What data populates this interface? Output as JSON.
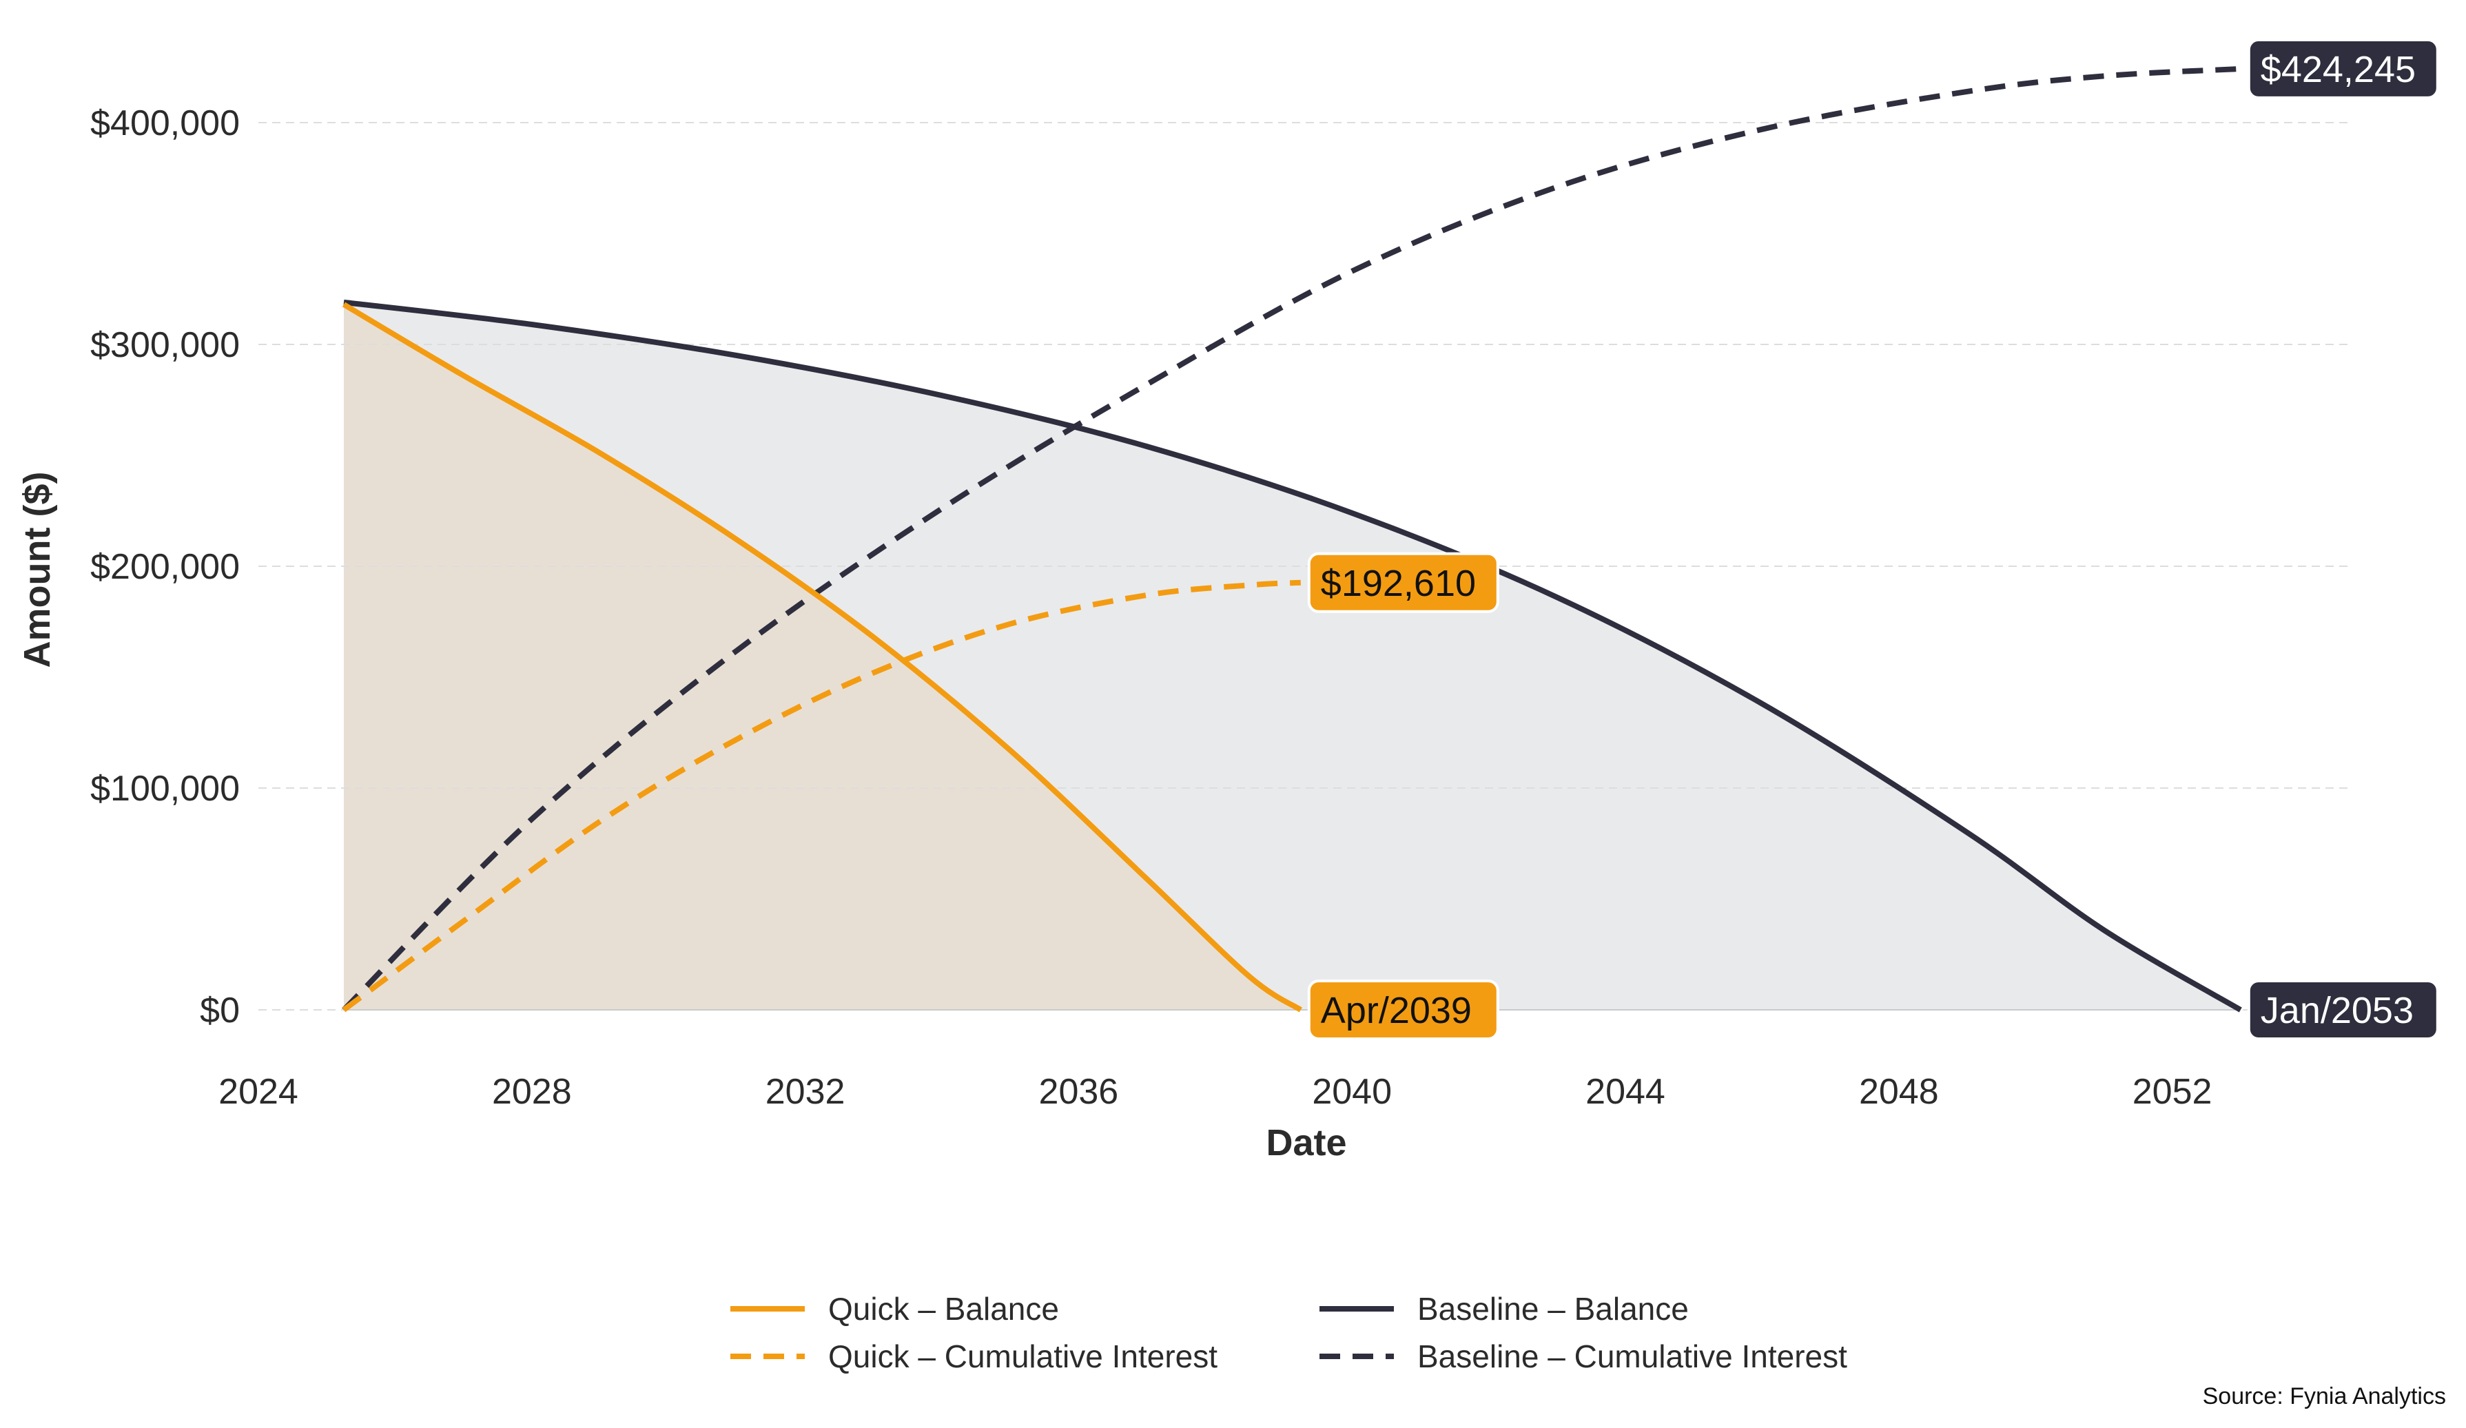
{
  "chart_data": {
    "type": "line",
    "title": "",
    "xlabel": "Date",
    "ylabel": "Amount ($)",
    "xlim": [
      2024,
      2055
    ],
    "ylim": [
      -20000,
      440000
    ],
    "x_ticks": [
      2024,
      2028,
      2032,
      2036,
      2040,
      2044,
      2048,
      2052
    ],
    "x_tick_labels": [
      "2024",
      "2028",
      "2032",
      "2036",
      "2040",
      "2044",
      "2048",
      "2052"
    ],
    "y_ticks": [
      0,
      100000,
      200000,
      300000,
      400000
    ],
    "y_tick_labels": [
      "$0",
      "$100,000",
      "$200,000",
      "$300,000",
      "$400,000"
    ],
    "grid": "horizontal dashed",
    "colors": {
      "quick": "#F39C12",
      "baseline": "#2E2E3E",
      "quick_fill": "#E8DFD4",
      "baseline_fill": "#E9EAEC",
      "grid": "#DDDDDD"
    },
    "series": [
      {
        "name": "Quick – Balance",
        "style": "solid",
        "color": "#F39C12",
        "fill": true,
        "x": [
          2025.25,
          2027,
          2029,
          2031,
          2033,
          2035,
          2037,
          2038.5,
          2039.25
        ],
        "values": [
          318000,
          286000,
          251000,
          212000,
          168000,
          117000,
          59000,
          15000,
          0
        ]
      },
      {
        "name": "Quick – Cumulative Interest",
        "style": "dashed",
        "color": "#F39C12",
        "x": [
          2025.25,
          2027,
          2029,
          2031,
          2033,
          2035,
          2037,
          2038.5,
          2039.25
        ],
        "values": [
          0,
          40000,
          85000,
          122000,
          152000,
          174000,
          187000,
          191500,
          192610
        ]
      },
      {
        "name": "Baseline – Balance",
        "style": "solid",
        "color": "#2E2E3E",
        "fill": true,
        "x": [
          2025.25,
          2028,
          2031,
          2034,
          2037,
          2040,
          2043,
          2046,
          2049,
          2051,
          2053
        ],
        "values": [
          319000,
          309000,
          295000,
          277000,
          254000,
          224000,
          186000,
          138000,
          80000,
          36000,
          0
        ]
      },
      {
        "name": "Baseline – Cumulative Interest",
        "style": "dashed",
        "color": "#2E2E3E",
        "x": [
          2025.25,
          2028,
          2031,
          2034,
          2037,
          2040,
          2043,
          2046,
          2049,
          2051,
          2053
        ],
        "values": [
          0,
          86000,
          162000,
          226000,
          282000,
          333000,
          371000,
          397000,
          414000,
          421000,
          424245
        ]
      }
    ],
    "annotations": [
      {
        "text": "$192,610",
        "x": 2039.25,
        "y": 192610,
        "series": "quick"
      },
      {
        "text": "Apr/2039",
        "x": 2039.25,
        "y": 0,
        "series": "quick"
      },
      {
        "text": "$424,245",
        "x": 2053,
        "y": 424245,
        "series": "baseline"
      },
      {
        "text": "Jan/2053",
        "x": 2053,
        "y": 0,
        "series": "baseline"
      }
    ],
    "legend_position": "bottom-center",
    "legend": [
      {
        "label": "Quick – Balance",
        "color": "#F39C12",
        "style": "solid"
      },
      {
        "label": "Baseline – Balance",
        "color": "#2E2E3E",
        "style": "solid"
      },
      {
        "label": "Quick – Cumulative Interest",
        "color": "#F39C12",
        "style": "dashed"
      },
      {
        "label": "Baseline – Cumulative Interest",
        "color": "#2E2E3E",
        "style": "dashed"
      }
    ],
    "source": "Source: Fynia Analytics"
  }
}
